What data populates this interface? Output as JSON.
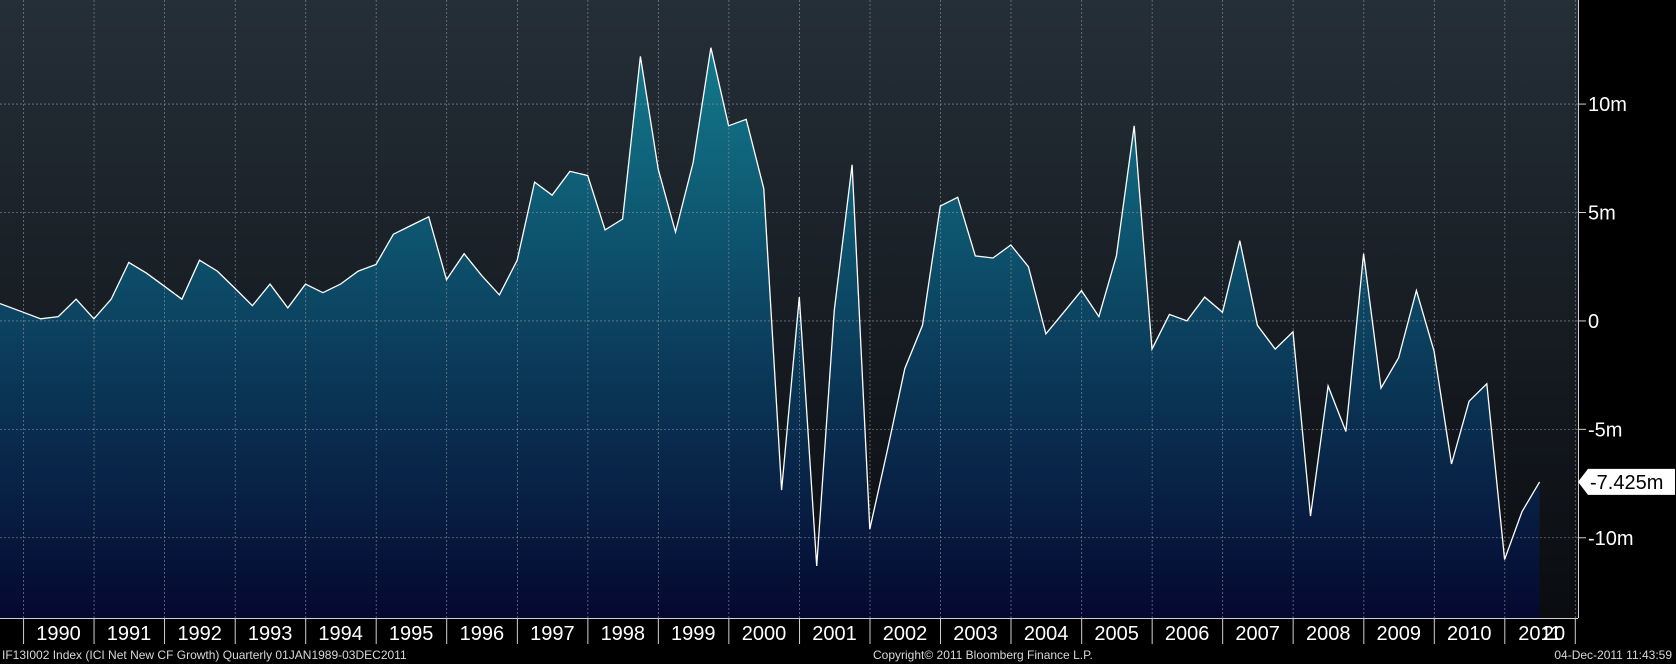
{
  "chart_data": {
    "type": "area",
    "title": "",
    "xlabel": "",
    "ylabel": "",
    "frequency": "Quarterly",
    "x_ticks": [
      "1990",
      "1991",
      "1992",
      "1993",
      "1994",
      "1995",
      "1996",
      "1997",
      "1998",
      "1999",
      "2000",
      "2001",
      "2002",
      "2003",
      "2004",
      "2005",
      "2006",
      "2007",
      "2008",
      "2009",
      "2010",
      "2011",
      "20"
    ],
    "y_ticks": [
      {
        "value": 10000000,
        "label": "10m"
      },
      {
        "value": 5000000,
        "label": "5m"
      },
      {
        "value": 0,
        "label": "0"
      },
      {
        "value": -5000000,
        "label": "-5m"
      },
      {
        "value": -10000000,
        "label": "-10m"
      }
    ],
    "ylim": [
      -13700000,
      14800000
    ],
    "xlim": [
      "1989-09-01",
      "2012-01-15"
    ],
    "grid": true,
    "series": [
      {
        "name": "",
        "color": "#ffffff",
        "fill_top": "#127b8e",
        "fill_bottom": "#050830",
        "last_value_label": "-7.425m",
        "points": [
          [
            "1989-09-01",
            800000
          ],
          [
            "1989-12-31",
            400000
          ],
          [
            "1990-03-31",
            100000
          ],
          [
            "1990-06-30",
            200000
          ],
          [
            "1990-09-30",
            1000000
          ],
          [
            "1990-12-31",
            100000
          ],
          [
            "1991-03-31",
            1000000
          ],
          [
            "1991-06-30",
            2700000
          ],
          [
            "1991-09-30",
            2200000
          ],
          [
            "1991-12-31",
            1600000
          ],
          [
            "1992-03-31",
            1000000
          ],
          [
            "1992-06-30",
            2800000
          ],
          [
            "1992-09-30",
            2300000
          ],
          [
            "1992-12-31",
            1500000
          ],
          [
            "1993-03-31",
            700000
          ],
          [
            "1993-06-30",
            1700000
          ],
          [
            "1993-09-30",
            600000
          ],
          [
            "1993-12-31",
            1700000
          ],
          [
            "1994-03-31",
            1300000
          ],
          [
            "1994-06-30",
            1700000
          ],
          [
            "1994-09-30",
            2300000
          ],
          [
            "1994-12-31",
            2600000
          ],
          [
            "1995-03-31",
            4000000
          ],
          [
            "1995-06-30",
            4400000
          ],
          [
            "1995-09-30",
            4800000
          ],
          [
            "1995-12-31",
            1900000
          ],
          [
            "1996-03-31",
            3100000
          ],
          [
            "1996-06-30",
            2100000
          ],
          [
            "1996-09-30",
            1200000
          ],
          [
            "1996-12-31",
            2800000
          ],
          [
            "1997-03-31",
            6400000
          ],
          [
            "1997-06-30",
            5800000
          ],
          [
            "1997-09-30",
            6900000
          ],
          [
            "1997-12-31",
            6700000
          ],
          [
            "1998-03-31",
            4200000
          ],
          [
            "1998-06-30",
            4700000
          ],
          [
            "1998-09-30",
            12200000
          ],
          [
            "1998-12-31",
            7000000
          ],
          [
            "1999-03-31",
            4100000
          ],
          [
            "1999-06-30",
            7300000
          ],
          [
            "1999-09-30",
            12600000
          ],
          [
            "1999-12-31",
            9000000
          ],
          [
            "2000-03-31",
            9300000
          ],
          [
            "2000-06-30",
            6100000
          ],
          [
            "2000-09-30",
            -7800000
          ],
          [
            "2000-12-31",
            1100000
          ],
          [
            "2001-03-31",
            -11300000
          ],
          [
            "2001-06-30",
            500000
          ],
          [
            "2001-09-30",
            7200000
          ],
          [
            "2001-12-31",
            -9600000
          ],
          [
            "2002-03-31",
            -6000000
          ],
          [
            "2002-06-30",
            -2200000
          ],
          [
            "2002-09-30",
            -200000
          ],
          [
            "2002-12-31",
            5300000
          ],
          [
            "2003-03-31",
            5700000
          ],
          [
            "2003-06-30",
            3000000
          ],
          [
            "2003-09-30",
            2900000
          ],
          [
            "2003-12-31",
            3500000
          ],
          [
            "2004-03-31",
            2500000
          ],
          [
            "2004-06-30",
            -600000
          ],
          [
            "2004-09-30",
            400000
          ],
          [
            "2004-12-31",
            1400000
          ],
          [
            "2005-03-31",
            200000
          ],
          [
            "2005-06-30",
            3000000
          ],
          [
            "2005-09-30",
            9000000
          ],
          [
            "2005-12-31",
            -1300000
          ],
          [
            "2006-03-31",
            300000
          ],
          [
            "2006-06-30",
            0
          ],
          [
            "2006-09-30",
            1100000
          ],
          [
            "2006-12-31",
            400000
          ],
          [
            "2007-03-31",
            3700000
          ],
          [
            "2007-06-30",
            -200000
          ],
          [
            "2007-09-30",
            -1300000
          ],
          [
            "2007-12-31",
            -500000
          ],
          [
            "2008-03-31",
            -9000000
          ],
          [
            "2008-06-30",
            -3000000
          ],
          [
            "2008-09-30",
            -5100000
          ],
          [
            "2008-12-31",
            3100000
          ],
          [
            "2009-03-31",
            -3100000
          ],
          [
            "2009-06-30",
            -1700000
          ],
          [
            "2009-09-30",
            1400000
          ],
          [
            "2009-12-31",
            -1400000
          ],
          [
            "2010-03-31",
            -6600000
          ],
          [
            "2010-06-30",
            -3700000
          ],
          [
            "2010-09-30",
            -2900000
          ],
          [
            "2010-12-31",
            -11000000
          ],
          [
            "2011-03-31",
            -8800000
          ],
          [
            "2011-06-30",
            -7425000
          ]
        ]
      }
    ]
  },
  "footer": {
    "left": "IF13I002 Index (ICI Net New CF  Growth)  Quarterly 01JAN1989-03DEC2011",
    "center": "Copyright© 2011 Bloomberg Finance L.P.",
    "right": "04-Dec-2011 11:43:59"
  }
}
